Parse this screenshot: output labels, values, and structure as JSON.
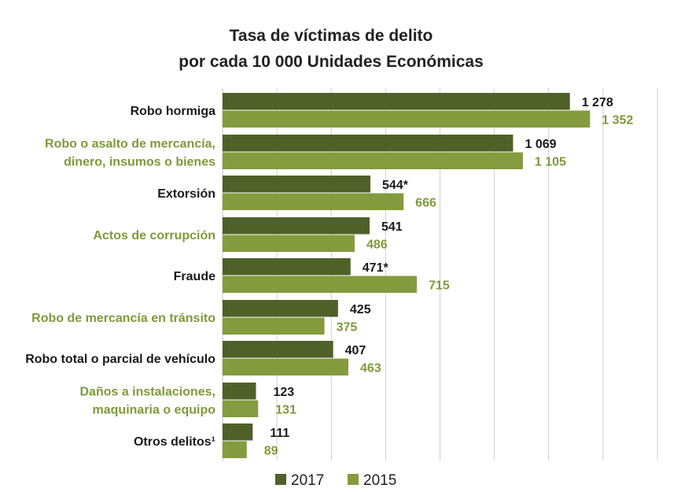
{
  "chart_data": {
    "type": "bar",
    "orientation": "horizontal",
    "title": [
      "Tasa de víctimas de delito",
      "por cada 10 000 Unidades Económicas"
    ],
    "xlim": [
      0,
      1600
    ],
    "grid": true,
    "legend_position": "bottom",
    "categories": [
      "Robo hormiga",
      "Robo o asalto de mercancía,\ndinero, insumos o bienes",
      "Extorsión",
      "Actos de corrupción",
      "Fraude",
      "Robo de mercancía en tránsito",
      "Robo total o parcial de vehículo",
      "Daños a instalaciones,\nmaquinaria o equipo",
      "Otros delitos¹"
    ],
    "category_colors": [
      "#1a1a1a",
      "#7e9a3a",
      "#1a1a1a",
      "#7e9a3a",
      "#1a1a1a",
      "#7e9a3a",
      "#1a1a1a",
      "#7e9a3a",
      "#1a1a1a"
    ],
    "series": [
      {
        "name": "2017",
        "color": "#4f6128",
        "label_color": "#1a1a1a",
        "values": [
          1278,
          1069,
          544,
          541,
          471,
          425,
          407,
          123,
          111
        ],
        "labels": [
          "1 278",
          "1 069",
          "544*",
          "541",
          "471*",
          "425",
          "407",
          "123",
          "111"
        ]
      },
      {
        "name": "2015",
        "color": "#849b3e",
        "label_color": "#7e9a3a",
        "values": [
          1352,
          1105,
          666,
          486,
          715,
          375,
          463,
          131,
          89
        ],
        "labels": [
          "1 352",
          "1 105",
          "666",
          "486",
          "715",
          "375",
          "463",
          "131",
          "89"
        ]
      }
    ]
  }
}
